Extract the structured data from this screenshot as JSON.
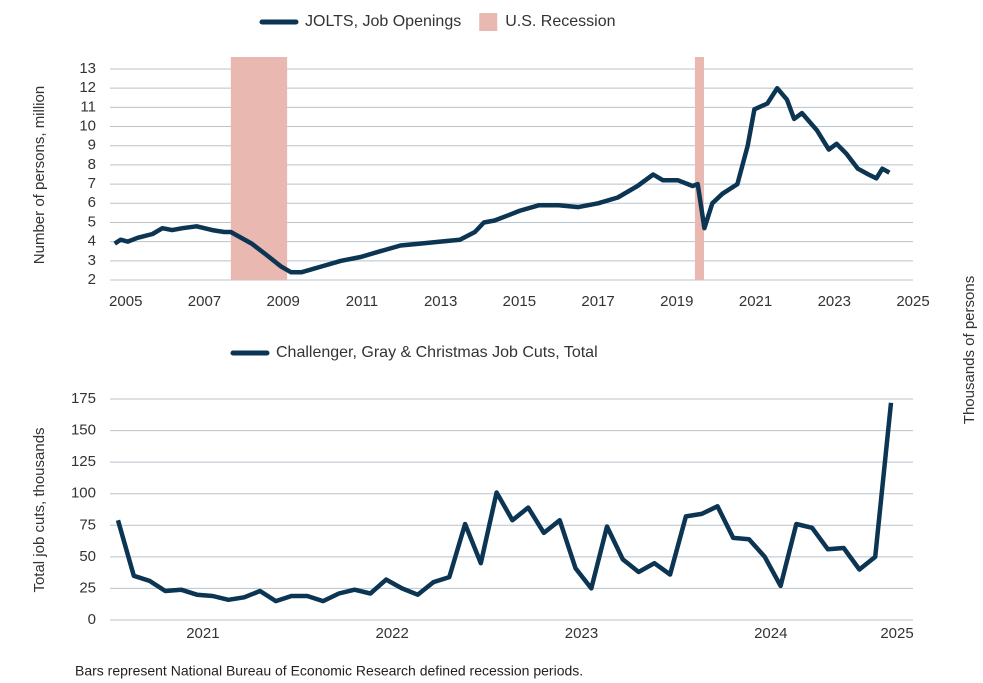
{
  "charts_note": "Bars represent National Bureau of Economic Research defined recession periods.",
  "side_label": "Thousands of persons",
  "chart_data": [
    {
      "type": "line",
      "x": [
        2004.72,
        2004.87,
        2005.05,
        2005.3,
        2005.68,
        2005.93,
        2006.18,
        2006.44,
        2006.8,
        2007.2,
        2007.5,
        2007.67,
        2008.2,
        2008.58,
        2008.95,
        2009.2,
        2009.46,
        2009.96,
        2010.47,
        2010.97,
        2011.47,
        2011.98,
        2012.48,
        2012.99,
        2013.49,
        2013.87,
        2014.1,
        2014.37,
        2014.75,
        2015.0,
        2015.5,
        2016.0,
        2016.5,
        2017.0,
        2017.5,
        2018.0,
        2018.4,
        2018.65,
        2019.03,
        2019.4,
        2019.53,
        2019.7,
        2019.9,
        2020.16,
        2020.54,
        2020.8,
        2020.97,
        2021.3,
        2021.55,
        2021.8,
        2021.98,
        2022.18,
        2022.56,
        2022.86,
        2023.06,
        2023.3,
        2023.6,
        2023.87,
        2024.07,
        2024.22,
        2024.4
      ],
      "series": [
        {
          "name": "JOLTS, Job Openings",
          "color": "#0b3553",
          "values": [
            3.9,
            4.1,
            4.0,
            4.2,
            4.4,
            4.7,
            4.6,
            4.7,
            4.8,
            4.6,
            4.5,
            4.5,
            3.9,
            3.3,
            2.7,
            2.4,
            2.4,
            2.7,
            3.0,
            3.2,
            3.5,
            3.8,
            3.9,
            4.0,
            4.1,
            4.5,
            5.0,
            5.1,
            5.4,
            5.6,
            5.9,
            5.9,
            5.8,
            6.0,
            6.3,
            6.9,
            7.5,
            7.2,
            7.2,
            6.9,
            7.0,
            4.7,
            6.0,
            6.5,
            7.0,
            9.0,
            10.9,
            11.2,
            12.0,
            11.4,
            10.4,
            10.7,
            9.8,
            8.8,
            9.1,
            8.6,
            7.8,
            7.5,
            7.3,
            7.8,
            7.6
          ]
        }
      ],
      "recessions": {
        "name": "U.S. Recession",
        "color": "#e9b8b1",
        "spans": [
          [
            2007.67,
            2009.1
          ],
          [
            2019.46,
            2019.69
          ]
        ]
      },
      "y_label": "Number of persons, million",
      "xlim": [
        2004.6,
        2025
      ],
      "xticks": [
        2005,
        2007,
        2009,
        2011,
        2013,
        2015,
        2017,
        2019,
        2021,
        2023,
        2025
      ],
      "ylim": [
        2,
        13
      ],
      "yticks": [
        2,
        3,
        4,
        5,
        6,
        7,
        8,
        9,
        10,
        11,
        12,
        13
      ],
      "grid": true
    },
    {
      "type": "line",
      "categories": [
        null,
        null,
        null,
        null,
        null,
        "2021",
        null,
        null,
        null,
        null,
        null,
        null,
        null,
        null,
        null,
        null,
        null,
        "2022",
        null,
        null,
        null,
        null,
        null,
        null,
        null,
        null,
        null,
        null,
        null,
        "2023",
        null,
        null,
        null,
        null,
        null,
        null,
        null,
        null,
        null,
        null,
        null,
        "2024",
        null,
        null,
        null,
        null,
        null,
        null,
        null,
        "2025"
      ],
      "series": [
        {
          "name": "Challenger, Gray & Christmas Job Cuts, Total",
          "color": "#0b3553",
          "values": [
            79,
            35,
            31,
            23,
            24,
            20,
            19,
            16,
            18,
            23,
            15,
            19,
            19,
            15,
            21,
            24,
            21,
            32,
            25,
            20,
            30,
            34,
            76,
            45,
            101,
            79,
            89,
            69,
            79,
            41,
            25,
            74,
            48,
            38,
            45,
            36,
            82,
            84,
            90,
            65,
            64,
            50,
            27,
            76,
            73,
            56,
            57,
            40,
            50,
            172
          ]
        }
      ],
      "y_label": "Total job cuts, thousands",
      "ylim": [
        0,
        175
      ],
      "yticks": [
        0,
        25,
        50,
        75,
        100,
        125,
        150,
        175
      ],
      "grid": true
    }
  ]
}
